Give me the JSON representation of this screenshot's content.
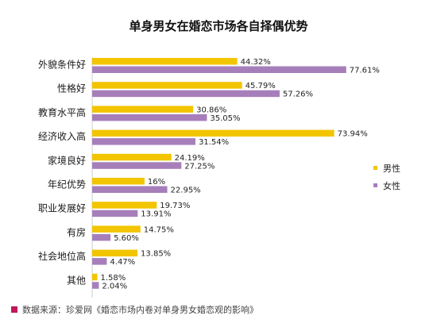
{
  "chart_data": {
    "type": "bar",
    "orientation": "horizontal",
    "title": "单身男女在婚恋市场各自择偶优势",
    "categories": [
      "外貌条件好",
      "性格好",
      "教育水平高",
      "经济收入高",
      "家境良好",
      "年纪优势",
      "职业发展好",
      "有房",
      "社会地位高",
      "其他"
    ],
    "series": [
      {
        "name": "男性",
        "color": "#F2C500",
        "values": [
          44.32,
          45.79,
          30.86,
          73.94,
          24.19,
          16,
          19.73,
          14.75,
          13.85,
          1.58
        ],
        "labels": [
          "44.32%",
          "45.79%",
          "30.86%",
          "73.94%",
          "24.19%",
          "16%",
          "19.73%",
          "14.75%",
          "13.85%",
          "1.58%"
        ]
      },
      {
        "name": "女性",
        "color": "#A67FBA",
        "values": [
          77.61,
          57.26,
          35.05,
          31.54,
          27.25,
          22.95,
          13.91,
          5.6,
          4.47,
          2.04
        ],
        "labels": [
          "77.61%",
          "57.26%",
          "35.05%",
          "31.54%",
          "27.25%",
          "22.95%",
          "13.91%",
          "5.60%",
          "4.47%",
          "2.04%"
        ]
      }
    ],
    "xlim": [
      0,
      100
    ],
    "grid": false,
    "legend_position": "right"
  },
  "source": {
    "text": "数据来源：珍爱网《婚恋市场内卷对单身男女婚恋观的影响》",
    "marker_color": "#C2185B"
  }
}
